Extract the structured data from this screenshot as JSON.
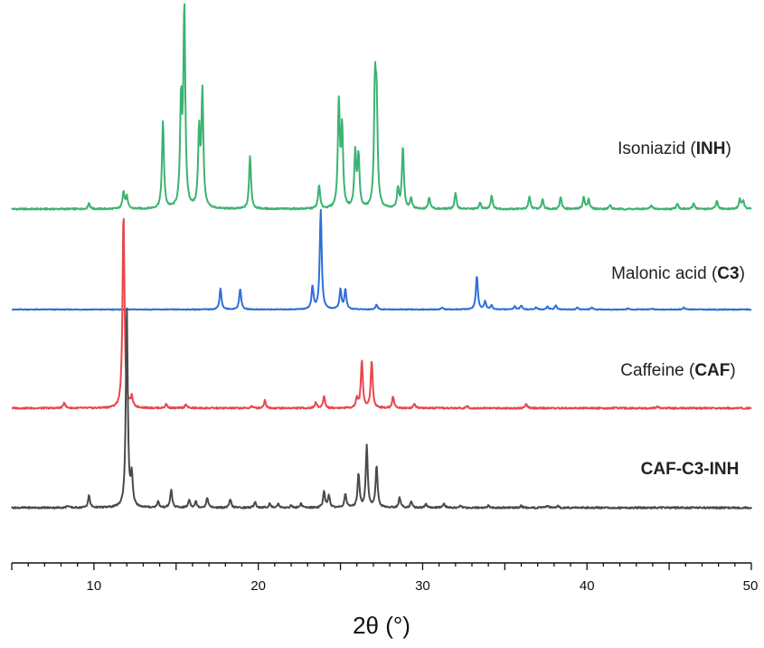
{
  "chart_data": {
    "type": "line",
    "title": "",
    "xlabel": "2θ (°)",
    "ylabel": "",
    "xlim": [
      5,
      50
    ],
    "x_ticks": [
      10,
      20,
      30,
      40,
      50
    ],
    "y_axis_shown": false,
    "grid": false,
    "legend": "none",
    "series": [
      {
        "name": "Isoniazid (INH)",
        "label_parts": [
          {
            "text": "Isoniazid (",
            "bold": false
          },
          {
            "text": "INH",
            "bold": true
          },
          {
            "text": ")",
            "bold": false
          }
        ],
        "color": "#3cb371",
        "offset": 3,
        "scale": 1.0,
        "peaks": [
          [
            9.7,
            0.03
          ],
          [
            11.8,
            0.09
          ],
          [
            12.0,
            0.06
          ],
          [
            14.2,
            0.44
          ],
          [
            15.3,
            0.52
          ],
          [
            15.5,
            1.0
          ],
          [
            16.4,
            0.38
          ],
          [
            16.6,
            0.58
          ],
          [
            19.5,
            0.27
          ],
          [
            23.7,
            0.12
          ],
          [
            24.9,
            0.53
          ],
          [
            25.1,
            0.4
          ],
          [
            25.9,
            0.28
          ],
          [
            26.1,
            0.26
          ],
          [
            27.1,
            0.57
          ],
          [
            27.2,
            0.48
          ],
          [
            28.5,
            0.1
          ],
          [
            28.8,
            0.31
          ],
          [
            29.3,
            0.05
          ],
          [
            30.4,
            0.06
          ],
          [
            32.0,
            0.08
          ],
          [
            33.5,
            0.03
          ],
          [
            34.2,
            0.07
          ],
          [
            36.5,
            0.06
          ],
          [
            37.3,
            0.05
          ],
          [
            38.4,
            0.06
          ],
          [
            39.8,
            0.06
          ],
          [
            40.1,
            0.05
          ],
          [
            41.4,
            0.02
          ],
          [
            43.9,
            0.02
          ],
          [
            45.5,
            0.03
          ],
          [
            46.5,
            0.03
          ],
          [
            47.9,
            0.04
          ],
          [
            49.3,
            0.05
          ],
          [
            49.5,
            0.04
          ]
        ]
      },
      {
        "name": "Malonic acid (C3)",
        "label_parts": [
          {
            "text": "Malonic acid (",
            "bold": false
          },
          {
            "text": "C3",
            "bold": true
          },
          {
            "text": ")",
            "bold": false
          }
        ],
        "color": "#2f6fd6",
        "offset": 2,
        "scale": 1.0,
        "peaks": [
          [
            17.7,
            0.21
          ],
          [
            18.9,
            0.21
          ],
          [
            23.3,
            0.23
          ],
          [
            23.8,
            1.0
          ],
          [
            25.0,
            0.2
          ],
          [
            25.3,
            0.2
          ],
          [
            27.2,
            0.05
          ],
          [
            31.2,
            0.02
          ],
          [
            33.3,
            0.34
          ],
          [
            33.8,
            0.08
          ],
          [
            34.2,
            0.04
          ],
          [
            35.6,
            0.03
          ],
          [
            36.0,
            0.04
          ],
          [
            36.9,
            0.02
          ],
          [
            37.6,
            0.03
          ],
          [
            38.1,
            0.04
          ],
          [
            39.4,
            0.02
          ],
          [
            40.3,
            0.02
          ],
          [
            42.5,
            0.01
          ],
          [
            44.0,
            0.01
          ],
          [
            45.9,
            0.02
          ]
        ]
      },
      {
        "name": "Caffeine (CAF)",
        "label_parts": [
          {
            "text": "Caffeine (",
            "bold": false
          },
          {
            "text": "CAF",
            "bold": true
          },
          {
            "text": ")",
            "bold": false
          }
        ],
        "color": "#e8474c",
        "offset": 1,
        "scale": 1.0,
        "peaks": [
          [
            8.2,
            0.03
          ],
          [
            11.8,
            1.0
          ],
          [
            12.3,
            0.05
          ],
          [
            14.4,
            0.02
          ],
          [
            15.6,
            0.02
          ],
          [
            19.6,
            0.01
          ],
          [
            20.4,
            0.04
          ],
          [
            23.5,
            0.03
          ],
          [
            24.0,
            0.06
          ],
          [
            26.0,
            0.05
          ],
          [
            26.3,
            0.24
          ],
          [
            26.9,
            0.24
          ],
          [
            28.2,
            0.06
          ],
          [
            29.5,
            0.02
          ],
          [
            32.7,
            0.01
          ],
          [
            36.3,
            0.02
          ],
          [
            44.3,
            0.01
          ]
        ]
      },
      {
        "name": "CAF-C3-INH",
        "label_parts": [
          {
            "text": "CAF-C3-INH",
            "bold": true
          }
        ],
        "color": "#4a4a4a",
        "offset": 0,
        "scale": 1.0,
        "peaks": [
          [
            8.4,
            0.01
          ],
          [
            9.7,
            0.06
          ],
          [
            12.0,
            1.0
          ],
          [
            12.3,
            0.15
          ],
          [
            13.9,
            0.03
          ],
          [
            14.7,
            0.09
          ],
          [
            15.8,
            0.04
          ],
          [
            16.2,
            0.03
          ],
          [
            16.9,
            0.05
          ],
          [
            18.3,
            0.04
          ],
          [
            19.8,
            0.03
          ],
          [
            20.7,
            0.02
          ],
          [
            21.2,
            0.02
          ],
          [
            22.0,
            0.01
          ],
          [
            22.6,
            0.02
          ],
          [
            24.0,
            0.08
          ],
          [
            24.3,
            0.06
          ],
          [
            25.3,
            0.07
          ],
          [
            26.1,
            0.17
          ],
          [
            26.6,
            0.31
          ],
          [
            27.2,
            0.21
          ],
          [
            28.6,
            0.05
          ],
          [
            29.3,
            0.03
          ],
          [
            30.2,
            0.02
          ],
          [
            31.3,
            0.02
          ],
          [
            32.3,
            0.01
          ],
          [
            34.0,
            0.01
          ],
          [
            36.0,
            0.01
          ],
          [
            37.6,
            0.01
          ],
          [
            38.2,
            0.01
          ]
        ]
      }
    ],
    "colors": {
      "axis": "#111111",
      "background": "#ffffff"
    }
  }
}
